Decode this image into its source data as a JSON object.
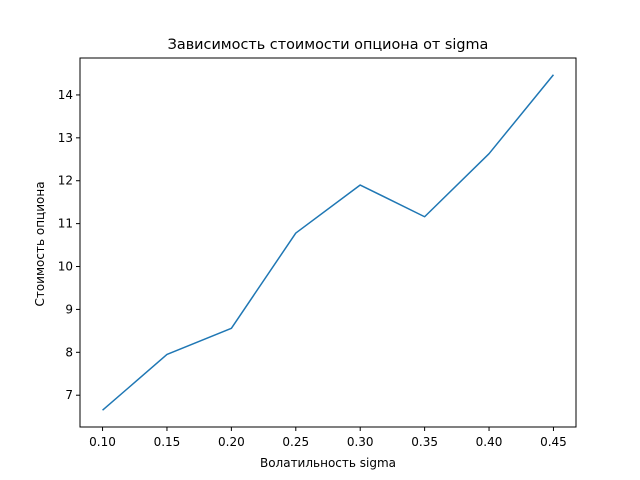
{
  "chart_data": {
    "type": "line",
    "title": "Зависимость стоимости опциона от sigma",
    "xlabel": "Волатильность sigma",
    "ylabel": "Стоимость опциона",
    "x": [
      0.1,
      0.15,
      0.2,
      0.25,
      0.3,
      0.35,
      0.4,
      0.45
    ],
    "series": [
      {
        "values": [
          6.65,
          7.95,
          8.56,
          10.78,
          11.9,
          11.16,
          12.63,
          14.47
        ],
        "color": "#1f77b4"
      }
    ],
    "xticks": [
      "0.10",
      "0.15",
      "0.20",
      "0.25",
      "0.30",
      "0.35",
      "0.40",
      "0.45"
    ],
    "yticks": [
      "7",
      "8",
      "9",
      "10",
      "11",
      "12",
      "13",
      "14"
    ],
    "xlim": [
      0.0825,
      0.4675
    ],
    "ylim": [
      6.259,
      14.861
    ],
    "grid": false,
    "legend": "none"
  }
}
